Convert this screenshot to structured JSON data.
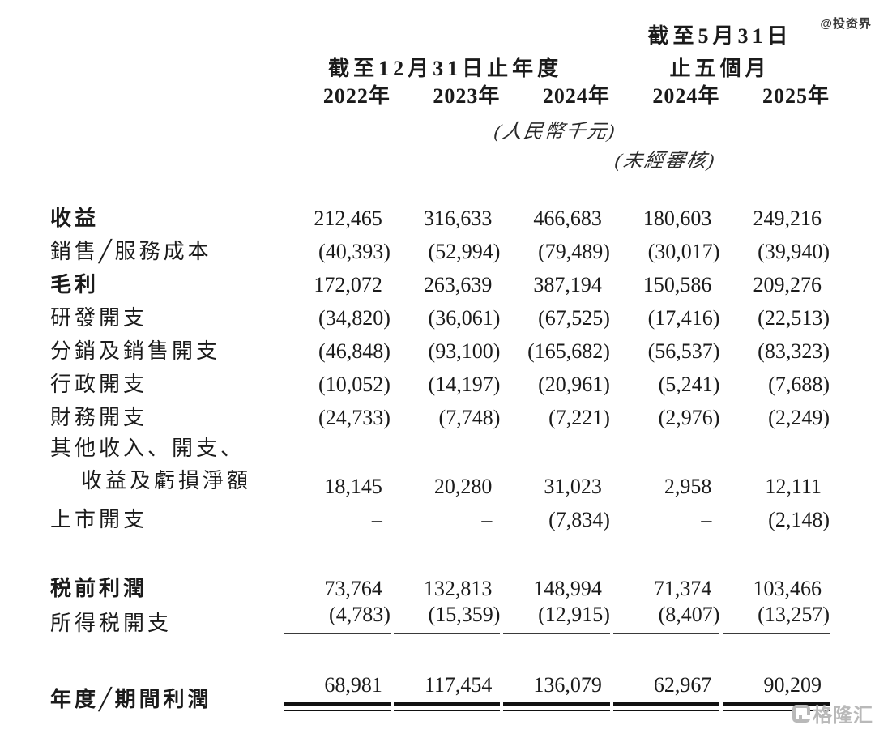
{
  "watermarks": {
    "top_right": "@投资界",
    "bottom_right": "格隆汇"
  },
  "colors": {
    "text": "#1b1b1b",
    "rule": "#111111",
    "watermark_gray": "#b9b9b9"
  },
  "table": {
    "unit_note": "(人民幣千元)",
    "unaudited_note": "(未經審核)",
    "span_headers": {
      "five_months_line1": "截至5月31日",
      "five_months_line2": "止五個月",
      "year_ended": "截至12月31日止年度"
    },
    "year_columns": [
      "2022年",
      "2023年",
      "2024年",
      "2024年",
      "2025年"
    ],
    "rows": [
      {
        "label": "收益",
        "bold": true,
        "values": [
          "212,465",
          "316,633",
          "466,683",
          "180,603",
          "249,216"
        ]
      },
      {
        "label": "銷售╱服務成本",
        "values": [
          "(40,393)",
          "(52,994)",
          "(79,489)",
          "(30,017)",
          "(39,940)"
        ]
      },
      {
        "label": "毛利",
        "bold": true,
        "values": [
          "172,072",
          "263,639",
          "387,194",
          "150,586",
          "209,276"
        ]
      },
      {
        "label": "研發開支",
        "values": [
          "(34,820)",
          "(36,061)",
          "(67,525)",
          "(17,416)",
          "(22,513)"
        ]
      },
      {
        "label": "分銷及銷售開支",
        "values": [
          "(46,848)",
          "(93,100)",
          "(165,682)",
          "(56,537)",
          "(83,323)"
        ]
      },
      {
        "label": "行政開支",
        "values": [
          "(10,052)",
          "(14,197)",
          "(20,961)",
          "(5,241)",
          "(7,688)"
        ]
      },
      {
        "label": "財務開支",
        "values": [
          "(24,733)",
          "(7,748)",
          "(7,221)",
          "(2,976)",
          "(2,249)"
        ]
      },
      {
        "label": "其他收入、開支、",
        "label2": "收益及虧損淨額",
        "values": [
          "18,145",
          "20,280",
          "31,023",
          "2,958",
          "12,111"
        ]
      },
      {
        "label": "上市開支",
        "values": [
          "–",
          "–",
          "(7,834)",
          "–",
          "(2,148)"
        ]
      },
      {
        "label": "税前利潤",
        "bold": true,
        "gap_before": true,
        "values": [
          "73,764",
          "132,813",
          "148,994",
          "71,374",
          "103,466"
        ]
      },
      {
        "label": "所得税開支",
        "rule": "single",
        "values": [
          "(4,783)",
          "(15,359)",
          "(12,915)",
          "(8,407)",
          "(13,257)"
        ]
      },
      {
        "label": "年度╱期間利潤",
        "bold": true,
        "gap_before": true,
        "rule": "double",
        "values": [
          "68,981",
          "117,454",
          "136,079",
          "62,967",
          "90,209"
        ]
      }
    ]
  }
}
